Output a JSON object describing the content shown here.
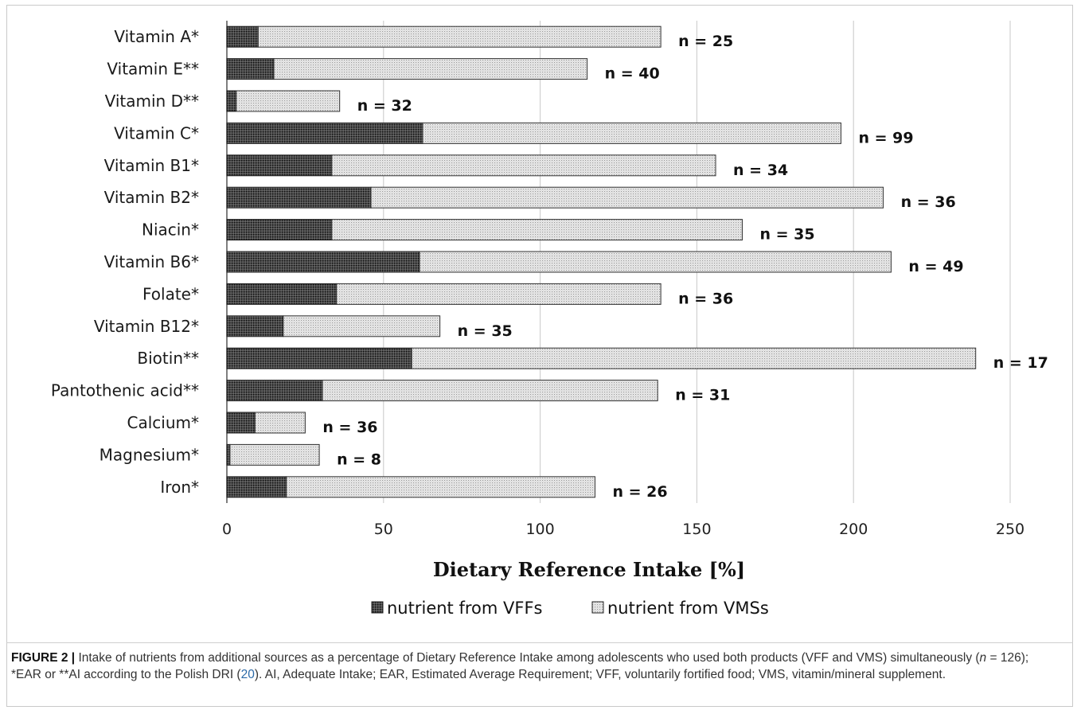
{
  "chart_data": {
    "type": "bar",
    "orientation": "horizontal",
    "stacked": true,
    "title": "",
    "xlabel": "Dietary Reference Intake [%]",
    "ylabel": "",
    "xlim": [
      0,
      250
    ],
    "x_ticks": [
      "0",
      "50",
      "100",
      "150",
      "200",
      "250"
    ],
    "grid": "vertical",
    "legend_position": "bottom",
    "categories": [
      "Vitamin A*",
      "Vitamin E**",
      "Vitamin D**",
      "Vitamin C*",
      "Vitamin B1*",
      "Vitamin B2*",
      "Niacin*",
      "Vitamin B6*",
      "Folate*",
      "Vitamin B12*",
      "Biotin**",
      "Pantothenic acid**",
      "Calcium*",
      "Magnesium*",
      "Iron*"
    ],
    "series": [
      {
        "name": "nutrient from VFFs",
        "color": "#3a3a3a",
        "pattern": "dark-dots",
        "values": [
          10,
          15,
          3,
          62.5,
          33.5,
          46,
          33.5,
          61.5,
          35,
          18,
          59,
          30.5,
          9,
          1,
          19
        ]
      },
      {
        "name": "nutrient from VMSs",
        "color": "#e6e6e6",
        "pattern": "light-dots",
        "values": [
          128.5,
          100,
          33,
          133.5,
          122.5,
          163.5,
          131,
          150.5,
          103.5,
          50,
          180,
          107,
          16,
          28.5,
          98.5
        ]
      }
    ],
    "annotations": [
      "n = 25",
      "n = 40",
      "n = 32",
      "n = 99",
      "n = 34",
      "n = 36",
      "n = 35",
      "n = 49",
      "n = 36",
      "n = 35",
      "n = 17",
      "n = 31",
      "n = 36",
      "n = 8",
      "n = 26"
    ]
  },
  "caption": {
    "label": "FIGURE 2 |",
    "part1": " Intake of nutrients from additional sources as a percentage of Dietary Reference Intake among adolescents who used both products (VFF and VMS) simultaneously (",
    "n_symbol": "n",
    "part2": " = 126); *EAR or **AI according to the Polish DRI (",
    "ref": "20",
    "part3": "). AI, Adequate Intake; EAR, Estimated Average Requirement; VFF, voluntarily fortified food; VMS, vitamin/mineral supplement."
  }
}
